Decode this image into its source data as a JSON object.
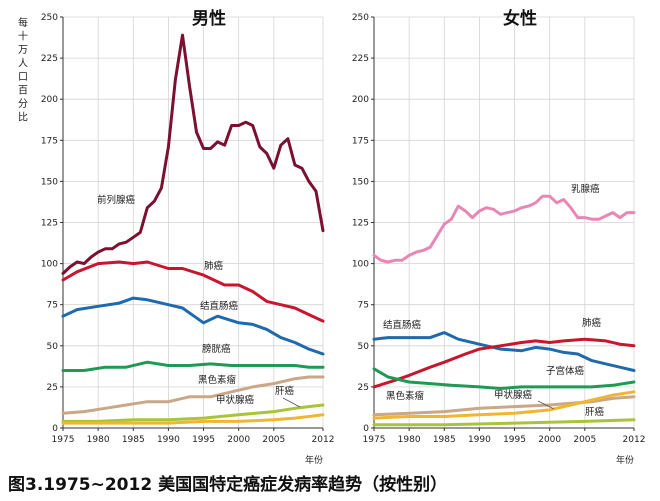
{
  "caption": "图3.1975~2012 美国国特定癌症发病率趋势（按性别）",
  "chart_data": [
    {
      "type": "line",
      "title": "男性",
      "ylabel": "每十万人口百分比",
      "xlabel": "年份",
      "xlim": [
        1975,
        2012
      ],
      "ylim": [
        0,
        250
      ],
      "x_ticks": [
        1975,
        1980,
        1985,
        1990,
        1995,
        2000,
        2005,
        2012
      ],
      "y_ticks": [
        0,
        25,
        50,
        75,
        100,
        125,
        150,
        175,
        200,
        225,
        250
      ],
      "grid": true,
      "series": [
        {
          "name": "前列腺癌",
          "color": "#7b1030",
          "x": [
            1975,
            1976,
            1977,
            1978,
            1979,
            1980,
            1981,
            1982,
            1983,
            1984,
            1985,
            1986,
            1987,
            1988,
            1989,
            1990,
            1991,
            1992,
            1993,
            1994,
            1995,
            1996,
            1997,
            1998,
            1999,
            2000,
            2001,
            2002,
            2003,
            2004,
            2005,
            2006,
            2007,
            2008,
            2009,
            2010,
            2011,
            2012
          ],
          "values": [
            94,
            98,
            101,
            100,
            104,
            107,
            109,
            109,
            112,
            113,
            116,
            119,
            134,
            138,
            146,
            171,
            212,
            239,
            208,
            180,
            170,
            170,
            174,
            172,
            184,
            184,
            186,
            184,
            171,
            167,
            158,
            172,
            176,
            160,
            158,
            150,
            144,
            120
          ]
        },
        {
          "name": "肺癌",
          "color": "#c8162f",
          "x": [
            1975,
            1977,
            1980,
            1983,
            1985,
            1987,
            1990,
            1992,
            1995,
            1998,
            2000,
            2002,
            2004,
            2006,
            2008,
            2010,
            2012
          ],
          "values": [
            90,
            95,
            100,
            101,
            100,
            101,
            97,
            97,
            93,
            87,
            87,
            83,
            77,
            75,
            73,
            69,
            65
          ]
        },
        {
          "name": "结直肠癌",
          "color": "#1f6aad",
          "x": [
            1975,
            1977,
            1980,
            1983,
            1985,
            1987,
            1990,
            1992,
            1995,
            1997,
            2000,
            2002,
            2004,
            2006,
            2008,
            2010,
            2012
          ],
          "values": [
            68,
            72,
            74,
            76,
            79,
            78,
            75,
            73,
            64,
            68,
            64,
            63,
            60,
            55,
            52,
            48,
            45
          ]
        },
        {
          "name": "膀胱癌",
          "color": "#1f9a55",
          "x": [
            1975,
            1978,
            1981,
            1984,
            1987,
            1990,
            1993,
            1996,
            1999,
            2002,
            2005,
            2008,
            2010,
            2012
          ],
          "values": [
            35,
            35,
            37,
            37,
            40,
            38,
            38,
            39,
            38,
            38,
            38,
            38,
            37,
            37
          ]
        },
        {
          "name": "黑色素瘤",
          "color": "#c9a787",
          "x": [
            1975,
            1978,
            1981,
            1984,
            1987,
            1990,
            1993,
            1996,
            1999,
            2002,
            2005,
            2008,
            2010,
            2012
          ],
          "values": [
            9,
            10,
            12,
            14,
            16,
            16,
            19,
            19,
            22,
            25,
            27,
            30,
            31,
            31
          ]
        },
        {
          "name": "肝癌",
          "color": "#a8c43a",
          "x": [
            1975,
            1980,
            1985,
            1990,
            1995,
            2000,
            2005,
            2008,
            2010,
            2012
          ],
          "values": [
            4,
            4,
            5,
            5,
            6,
            8,
            10,
            12,
            13,
            14
          ]
        },
        {
          "name": "甲状腺癌",
          "color": "#f2b531",
          "x": [
            1975,
            1980,
            1985,
            1990,
            1995,
            2000,
            2005,
            2008,
            2010,
            2012
          ],
          "values": [
            3,
            3,
            3,
            3,
            4,
            4,
            5,
            6,
            7,
            8
          ]
        }
      ]
    },
    {
      "type": "line",
      "title": "女性",
      "xlabel": "年份",
      "xlim": [
        1975,
        2012
      ],
      "ylim": [
        0,
        250
      ],
      "x_ticks": [
        1975,
        1980,
        1985,
        1990,
        1995,
        2000,
        2005,
        2012
      ],
      "y_ticks": [
        0,
        25,
        50,
        75,
        100,
        125,
        150,
        175,
        200,
        225,
        250
      ],
      "grid": true,
      "series": [
        {
          "name": "乳腺癌",
          "color": "#e887b5",
          "x": [
            1975,
            1976,
            1977,
            1978,
            1979,
            1980,
            1981,
            1982,
            1983,
            1984,
            1985,
            1986,
            1987,
            1988,
            1989,
            1990,
            1991,
            1992,
            1993,
            1994,
            1995,
            1996,
            1997,
            1998,
            1999,
            2000,
            2001,
            2002,
            2003,
            2004,
            2005,
            2006,
            2007,
            2008,
            2009,
            2010,
            2011,
            2012
          ],
          "values": [
            105,
            102,
            101,
            102,
            102,
            105,
            107,
            108,
            110,
            117,
            124,
            127,
            135,
            132,
            128,
            132,
            134,
            133,
            130,
            131,
            132,
            134,
            135,
            137,
            141,
            141,
            137,
            139,
            134,
            128,
            128,
            127,
            127,
            129,
            131,
            128,
            131,
            131
          ]
        },
        {
          "name": "结直肠癌",
          "color": "#1f6aad",
          "x": [
            1975,
            1977,
            1980,
            1983,
            1985,
            1987,
            1990,
            1993,
            1996,
            1998,
            2000,
            2002,
            2004,
            2006,
            2008,
            2010,
            2012
          ],
          "values": [
            54,
            55,
            55,
            55,
            58,
            54,
            51,
            48,
            47,
            49,
            48,
            46,
            45,
            41,
            39,
            37,
            35
          ]
        },
        {
          "name": "肺癌",
          "color": "#c8162f",
          "x": [
            1975,
            1978,
            1980,
            1983,
            1985,
            1988,
            1990,
            1993,
            1996,
            1998,
            2000,
            2002,
            2005,
            2008,
            2010,
            2012
          ],
          "values": [
            25,
            29,
            32,
            37,
            40,
            45,
            48,
            50,
            52,
            53,
            52,
            53,
            54,
            53,
            51,
            50
          ]
        },
        {
          "name": "子宫体癌",
          "color": "#1f9a55",
          "x": [
            1975,
            1977,
            1980,
            1983,
            1986,
            1990,
            1993,
            1996,
            2000,
            2003,
            2006,
            2009,
            2012
          ],
          "values": [
            36,
            31,
            28,
            27,
            26,
            25,
            24,
            25,
            25,
            25,
            25,
            26,
            28
          ]
        },
        {
          "name": "黑色素瘤",
          "color": "#c9a787",
          "x": [
            1975,
            1980,
            1985,
            1990,
            1995,
            2000,
            2003,
            2006,
            2009,
            2012
          ],
          "values": [
            8,
            9,
            10,
            12,
            13,
            14,
            15,
            16,
            18,
            19
          ]
        },
        {
          "name": "甲状腺癌",
          "color": "#f2b531",
          "x": [
            1975,
            1980,
            1985,
            1990,
            1995,
            2000,
            2003,
            2006,
            2009,
            2012
          ],
          "values": [
            6,
            7,
            7,
            8,
            9,
            11,
            14,
            17,
            20,
            22
          ]
        },
        {
          "name": "肝癌",
          "color": "#a8c43a",
          "x": [
            1975,
            1985,
            1995,
            2005,
            2012
          ],
          "values": [
            2,
            2,
            3,
            4,
            5
          ]
        }
      ]
    }
  ]
}
